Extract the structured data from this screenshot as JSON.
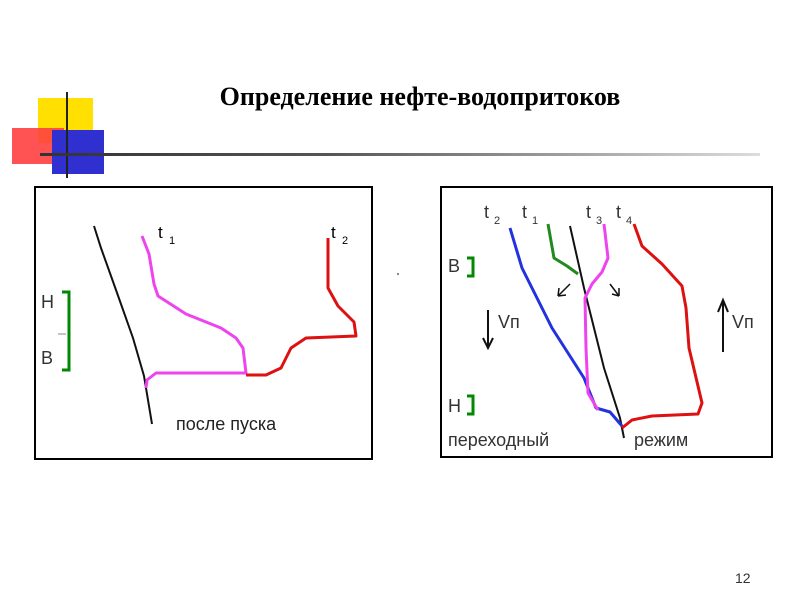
{
  "title": "Определение нефте-водопритоков",
  "page_number": "12",
  "left_panel": {
    "curve_label_t1": "t",
    "curve_label_t1_sub": "1",
    "curve_label_t2": "t",
    "curve_label_t2_sub": "2",
    "marker_top": "Н",
    "marker_bottom": "В",
    "caption": "после пуска"
  },
  "right_panel": {
    "curve_labels": [
      {
        "main": "t",
        "sub": "2"
      },
      {
        "main": "t",
        "sub": "1"
      },
      {
        "main": "t",
        "sub": "3"
      },
      {
        "main": "t",
        "sub": "4"
      }
    ],
    "marker_top": "В",
    "marker_bottom": "Н",
    "velocity_down": "Vп",
    "velocity_up": "Vп",
    "caption_left": "переходный",
    "caption_right": "режим"
  },
  "colors": {
    "magenta": "#ee44ee",
    "red": "#dd1111",
    "blue": "#2233dd",
    "green": "#228822",
    "bracket_green": "#008800",
    "deco_yellow": "#ffe000",
    "deco_red": "#ff3030",
    "deco_blue": "#2a2ad0"
  }
}
